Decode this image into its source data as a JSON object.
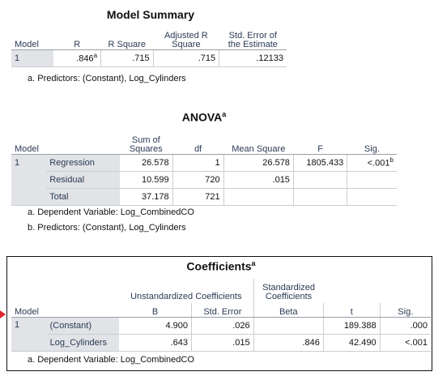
{
  "model_summary": {
    "title": "Model Summary",
    "headers": [
      "Model",
      "R",
      "R Square",
      "Adjusted R Square",
      "Std. Error of the Estimate"
    ],
    "rows": [
      {
        "model": "1",
        "r": ".846",
        "r_sup": "a",
        "r_square": ".715",
        "adj_r_square": ".715",
        "std_error": ".12133"
      }
    ],
    "footnote": "a. Predictors: (Constant), Log_Cylinders"
  },
  "anova": {
    "title": "ANOVA",
    "title_sup": "a",
    "headers": [
      "Model",
      "",
      "Sum of Squares",
      "df",
      "Mean Square",
      "F",
      "Sig."
    ],
    "model": "1",
    "rows": [
      {
        "label": "Regression",
        "ss": "26.578",
        "df": "1",
        "ms": "26.578",
        "f": "1805.433",
        "sig": "<.001",
        "sig_sup": "b"
      },
      {
        "label": "Residual",
        "ss": "10.599",
        "df": "720",
        "ms": ".015",
        "f": "",
        "sig": ""
      },
      {
        "label": "Total",
        "ss": "37.178",
        "df": "721",
        "ms": "",
        "f": "",
        "sig": ""
      }
    ],
    "footnotes": [
      "a. Dependent Variable: Log_CombinedCO",
      "b. Predictors: (Constant), Log_Cylinders"
    ]
  },
  "coefficients": {
    "title": "Coefficients",
    "title_sup": "a",
    "group_headers": {
      "unstandardized": "Unstandardized Coefficients",
      "standardized": "Standardized Coefficients"
    },
    "headers": [
      "Model",
      "",
      "B",
      "Std. Error",
      "Beta",
      "t",
      "Sig."
    ],
    "model": "1",
    "rows": [
      {
        "label": "(Constant)",
        "b": "4.900",
        "se": ".026",
        "beta": "",
        "t": "189.388",
        "sig": ".000"
      },
      {
        "label": "Log_Cylinders",
        "b": ".643",
        "se": ".015",
        "beta": ".846",
        "t": "42.490",
        "sig": "<.001"
      }
    ],
    "footnote": "a. Dependent Variable: Log_CombinedCO"
  },
  "colors": {
    "header_text": "#2b3a55",
    "shade": "#e1e3e6",
    "arrow": "#e0262e"
  }
}
